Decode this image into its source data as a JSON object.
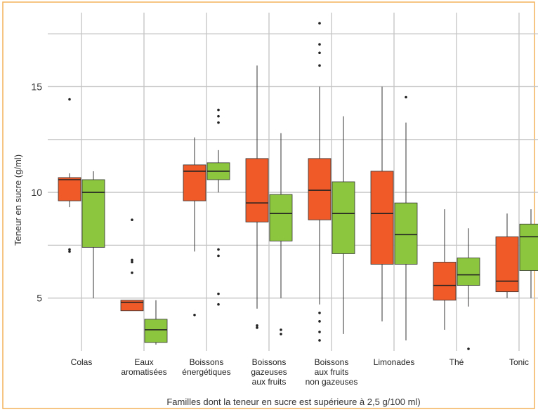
{
  "colors": {
    "frame": "#f3b25a",
    "grid": "#c4c4c4",
    "series_1": "#f05a28",
    "series_2": "#8cc63f"
  },
  "chart_data": {
    "type": "box",
    "title": "",
    "xlabel": "Familles dont la teneur en sucre est supérieure à 2,5 g/100 ml)",
    "ylabel": "Teneur en sucre (g/ml)",
    "ylim": [
      2.5,
      18.5
    ],
    "yticks": [
      5,
      10,
      15
    ],
    "ytick_labels": [
      "5",
      "10",
      "15"
    ],
    "grid": true,
    "categories": [
      [
        "Colas"
      ],
      [
        "Eaux",
        "aromatisées"
      ],
      [
        "Boissons",
        "énergétiques"
      ],
      [
        "Boissons",
        "gazeuses",
        "aux fruits"
      ],
      [
        "Boissons",
        "aux fruits",
        "non gazeuses"
      ],
      [
        "Limonades"
      ],
      [
        "Thé"
      ],
      [
        "Tonic"
      ]
    ],
    "series": [
      {
        "color": "#f05a28",
        "boxes": [
          {
            "lower_whisker": 9.3,
            "q1": 9.6,
            "median": 10.6,
            "q3": 10.7,
            "upper_whisker": 10.9,
            "outliers": [
              14.4,
              7.3,
              7.2
            ]
          },
          {
            "lower_whisker": 4.4,
            "q1": 4.4,
            "median": 4.8,
            "q3": 4.9,
            "upper_whisker": 4.9,
            "outliers": [
              8.7,
              6.8,
              6.7,
              6.2
            ]
          },
          {
            "lower_whisker": 7.2,
            "q1": 9.6,
            "median": 11.0,
            "q3": 11.3,
            "upper_whisker": 12.6,
            "outliers": [
              4.2
            ]
          },
          {
            "lower_whisker": 4.5,
            "q1": 8.6,
            "median": 9.5,
            "q3": 11.6,
            "upper_whisker": 16.0,
            "outliers": [
              3.7,
              3.6
            ]
          },
          {
            "lower_whisker": 4.7,
            "q1": 8.7,
            "median": 10.1,
            "q3": 11.6,
            "upper_whisker": 15.0,
            "outliers": [
              18.0,
              17.0,
              16.6,
              16.0,
              4.3,
              3.9,
              3.4,
              3.0
            ]
          },
          {
            "lower_whisker": 3.9,
            "q1": 6.6,
            "median": 9.0,
            "q3": 11.0,
            "upper_whisker": 15.0,
            "outliers": []
          },
          {
            "lower_whisker": 3.5,
            "q1": 4.9,
            "median": 5.6,
            "q3": 6.7,
            "upper_whisker": 9.2,
            "outliers": []
          },
          {
            "lower_whisker": 5.0,
            "q1": 5.3,
            "median": 5.8,
            "q3": 7.9,
            "upper_whisker": 9.0,
            "outliers": []
          }
        ]
      },
      {
        "color": "#8cc63f",
        "boxes": [
          {
            "lower_whisker": 5.0,
            "q1": 7.4,
            "median": 10.0,
            "q3": 10.6,
            "upper_whisker": 11.0,
            "outliers": []
          },
          {
            "lower_whisker": 2.8,
            "q1": 2.9,
            "median": 3.5,
            "q3": 4.0,
            "upper_whisker": 4.9,
            "outliers": []
          },
          {
            "lower_whisker": 10.0,
            "q1": 10.6,
            "median": 11.0,
            "q3": 11.4,
            "upper_whisker": 12.0,
            "outliers": [
              13.9,
              13.6,
              13.3,
              7.3,
              7.0,
              5.2,
              4.7
            ]
          },
          {
            "lower_whisker": 5.0,
            "q1": 7.7,
            "median": 9.0,
            "q3": 9.9,
            "upper_whisker": 12.8,
            "outliers": [
              3.5,
              3.3
            ]
          },
          {
            "lower_whisker": 3.3,
            "q1": 7.1,
            "median": 9.0,
            "q3": 10.5,
            "upper_whisker": 13.6,
            "outliers": []
          },
          {
            "lower_whisker": 3.0,
            "q1": 6.6,
            "median": 8.0,
            "q3": 9.5,
            "upper_whisker": 13.3,
            "outliers": [
              14.5
            ]
          },
          {
            "lower_whisker": 4.6,
            "q1": 5.6,
            "median": 6.1,
            "q3": 6.9,
            "upper_whisker": 8.3,
            "outliers": [
              2.6
            ]
          },
          {
            "lower_whisker": 5.0,
            "q1": 6.3,
            "median": 7.9,
            "q3": 8.5,
            "upper_whisker": 9.2,
            "outliers": []
          }
        ]
      }
    ]
  }
}
